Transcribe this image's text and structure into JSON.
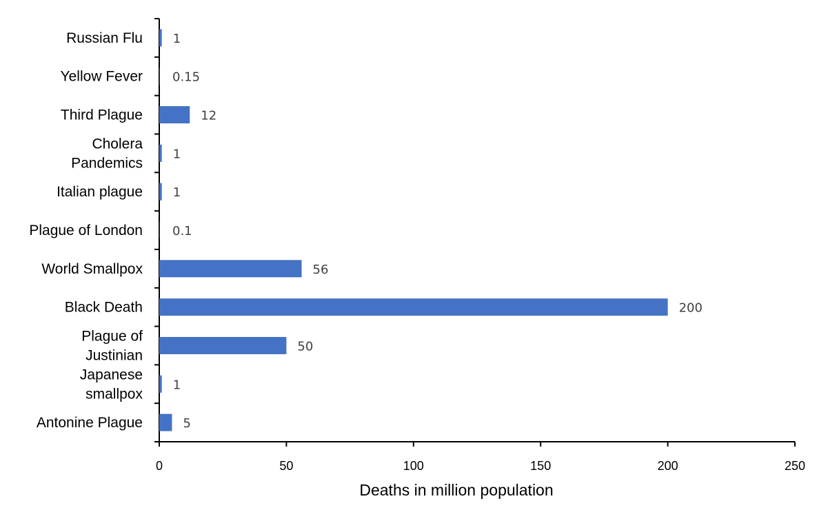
{
  "chart_data": {
    "type": "bar",
    "orientation": "horizontal",
    "categories": [
      "Antonine Plague",
      "Japanese\nsmallpox",
      "Plague of\nJustinian",
      "Black Death",
      "World Smallpox",
      "Plague of London",
      "Italian plague",
      "Cholera\nPandemics",
      "Third Plague",
      "Yellow Fever",
      "Russian Flu"
    ],
    "values": [
      5,
      1,
      50,
      200,
      56,
      0.1,
      1,
      1,
      12,
      0.15,
      1
    ],
    "data_labels": [
      "5",
      "1",
      "50",
      "200",
      "56",
      "0.1",
      "1",
      "1",
      "12",
      "0.15",
      "1"
    ],
    "xlabel": "Deaths in million population",
    "ylabel": "",
    "xlim": [
      0,
      250
    ],
    "xticks": [
      0,
      50,
      100,
      150,
      200,
      250
    ],
    "grid": false,
    "bar_color": "#4472C4"
  }
}
